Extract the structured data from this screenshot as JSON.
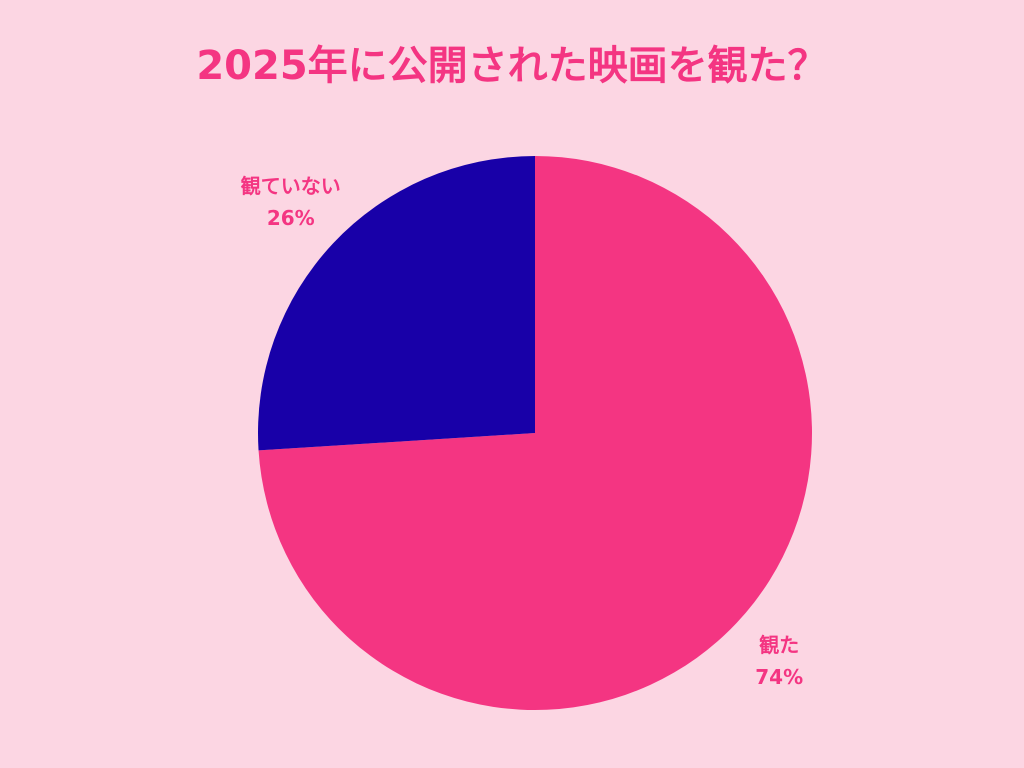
{
  "chart_data": {
    "type": "pie",
    "title": "2025年に公開された映画を観た？",
    "categories": [
      "観た",
      "観ていない"
    ],
    "values": [
      74,
      26
    ],
    "value_labels": [
      "74%",
      "26%"
    ],
    "colors": [
      "#f43582",
      "#1800a8"
    ]
  }
}
